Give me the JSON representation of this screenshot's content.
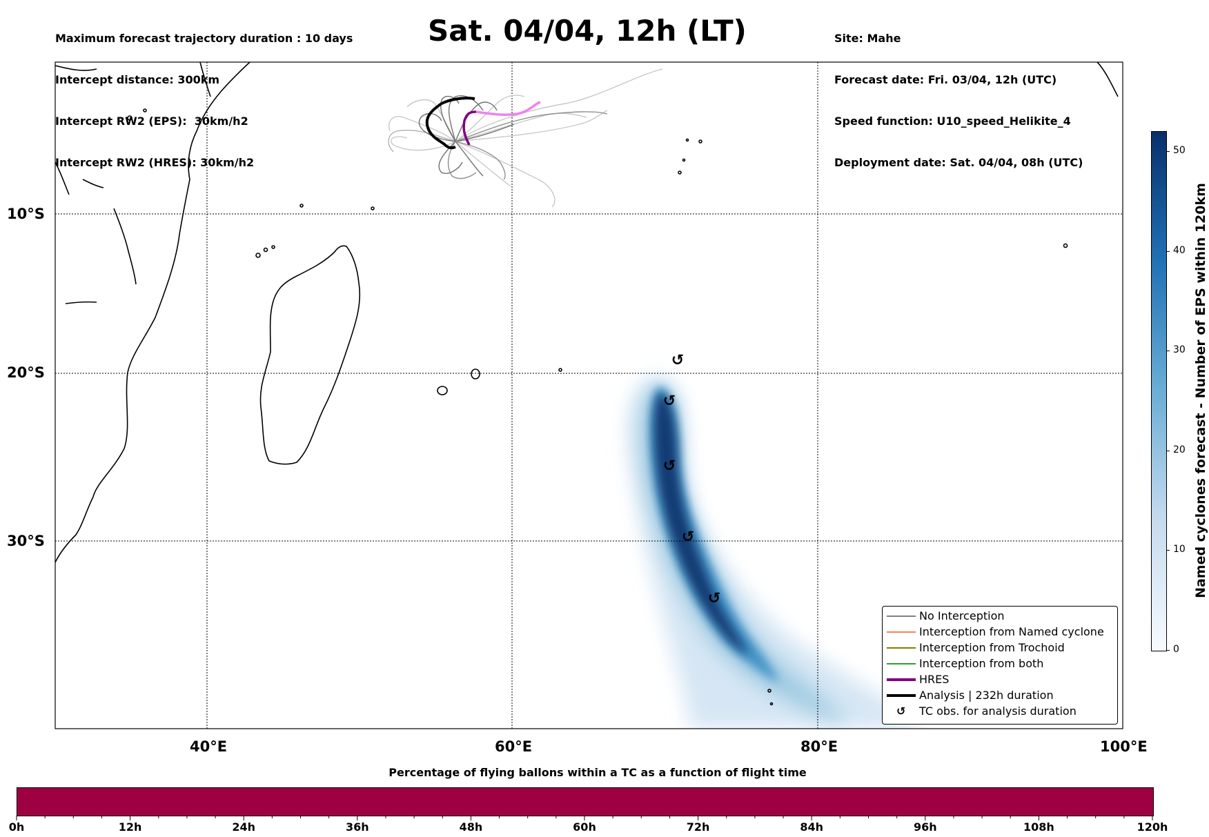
{
  "header": {
    "left_lines": [
      "Maximum forecast trajectory duration : 10 days",
      "Intercept distance: 300km",
      "Intercept RW2 (EPS):  30km/h2",
      "Intercept RW2 (HRES): 30km/h2"
    ],
    "title": "Sat. 04/04, 12h (LT)",
    "right_lines": [
      "Site: Mahe",
      "Forecast date: Fri. 03/04, 12h (UTC)",
      "Speed function: U10_speed_Helikite_4",
      "Deployment date: Sat. 04/04, 08h (UTC)"
    ]
  },
  "map": {
    "lat_labels": [
      "10°S",
      "20°S",
      "30°S"
    ],
    "lon_labels": [
      "40°E",
      "60°E",
      "80°E",
      "100°E"
    ]
  },
  "legend": {
    "items": [
      {
        "label": "No Interception",
        "color": "#808080"
      },
      {
        "label": "Interception from Named cyclone",
        "color": "#ff7f50"
      },
      {
        "label": "Interception from Trochoid",
        "color": "#808000"
      },
      {
        "label": "Interception from both",
        "color": "#2ca02c"
      },
      {
        "label": "HRES",
        "color": "#800080"
      },
      {
        "label": "Analysis | 232h duration",
        "color": "#000000"
      },
      {
        "label": "TC obs. for analysis duration",
        "glyph": "↺"
      }
    ]
  },
  "colorbar": {
    "label": "Named cyclones forecast - Number of EPS within 120km",
    "ticks": [
      "0",
      "10",
      "20",
      "30",
      "40",
      "50"
    ],
    "range": [
      0,
      52
    ]
  },
  "bottom": {
    "title": "Percentage of flying ballons within a TC as a function of flight time",
    "bar_color": "#9e0142",
    "hour_labels": [
      "0h",
      "12h",
      "24h",
      "36h",
      "48h",
      "60h",
      "72h",
      "84h",
      "96h",
      "108h",
      "120h"
    ]
  },
  "tc_obs_glyph": "↺"
}
